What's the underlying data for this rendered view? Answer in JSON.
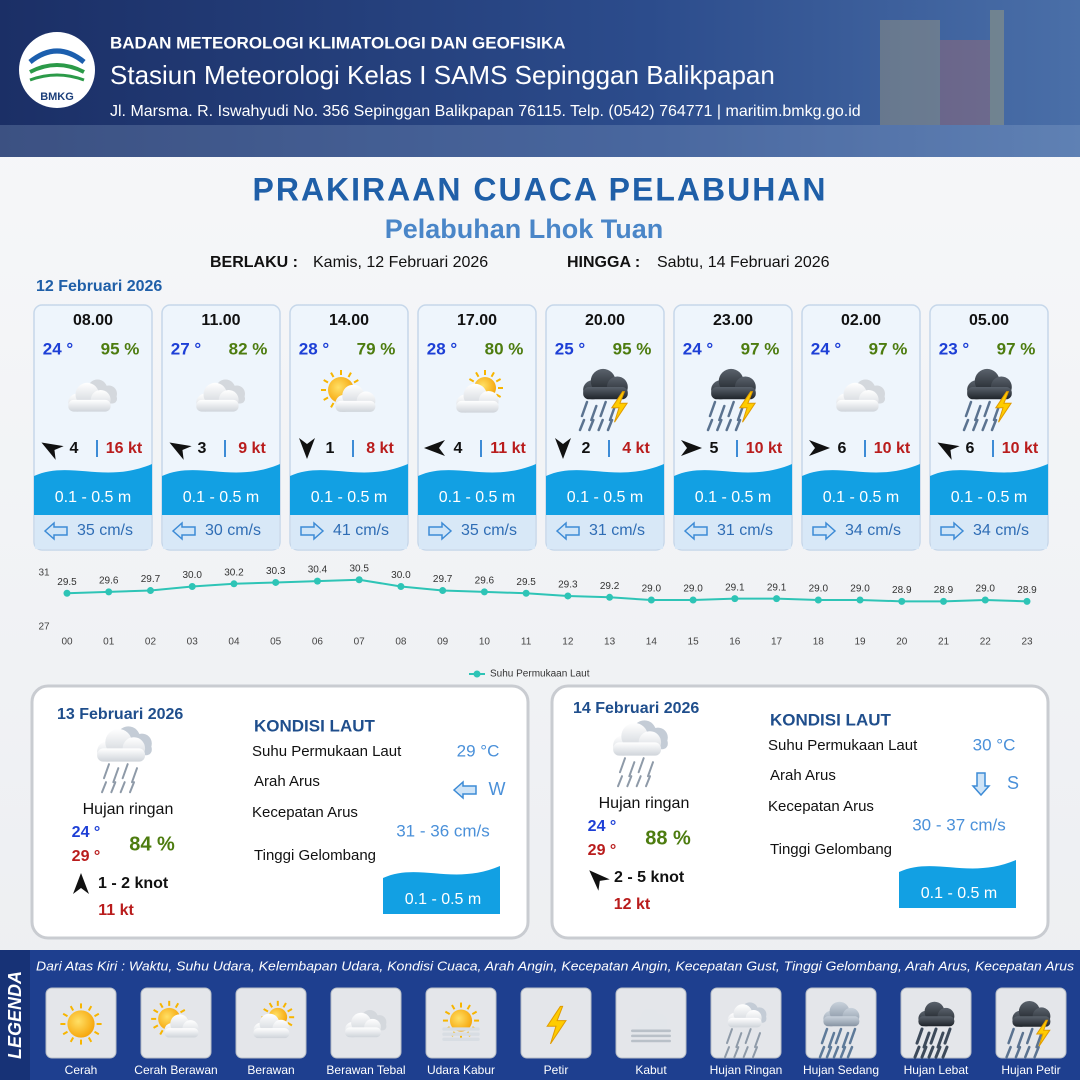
{
  "header": {
    "logo": "BMKG",
    "organization": "BADAN METEOROLOGI KLIMATOLOGI DAN GEOFISIKA",
    "station": "Stasiun Meteorologi Kelas I SAMS Sepinggan Balikpapan",
    "address": "Jl. Marsma. R. Iswahyudi No. 356 Sepinggan Balikpapan 76115. Telp. (0542) 764771 | maritim.bmkg.go.id"
  },
  "title": "PRAKIRAAN CUACA PELABUHAN",
  "subtitle": "Pelabuhan Lhok Tuan",
  "validity": {
    "from_label": "BERLAKU :",
    "from": "Kamis, 12 Februari 2026",
    "to_label": "HINGGA :",
    "to": "Sabtu, 14 Februari 2026"
  },
  "day1_date": "12 Februari 2026",
  "cards": [
    {
      "time": "08.00",
      "temperature": "24 °",
      "humidity": "95 %",
      "wind_speed": "4",
      "gust": "16 kt",
      "wave": "0.1 - 0.5 m",
      "current_speed": "35 cm/s"
    },
    {
      "time": "11.00",
      "temperature": "27 °",
      "humidity": "82 %",
      "wind_speed": "3",
      "gust": "9 kt",
      "wave": "0.1 - 0.5 m",
      "current_speed": "30 cm/s"
    },
    {
      "time": "14.00",
      "temperature": "28 °",
      "humidity": "79 %",
      "wind_speed": "1",
      "gust": "8 kt",
      "wave": "0.1 - 0.5 m",
      "current_speed": "41 cm/s"
    },
    {
      "time": "17.00",
      "temperature": "28 °",
      "humidity": "80 %",
      "wind_speed": "4",
      "gust": "11 kt",
      "wave": "0.1 - 0.5 m",
      "current_speed": "35 cm/s"
    },
    {
      "time": "20.00",
      "temperature": "25 °",
      "humidity": "95 %",
      "wind_speed": "2",
      "gust": "4 kt",
      "wave": "0.1 - 0.5 m",
      "current_speed": "31 cm/s"
    },
    {
      "time": "23.00",
      "temperature": "24 °",
      "humidity": "97 %",
      "wind_speed": "5",
      "gust": "10 kt",
      "wave": "0.1 - 0.5 m",
      "current_speed": "31 cm/s"
    },
    {
      "time": "02.00",
      "temperature": "24 °",
      "humidity": "97 %",
      "wind_speed": "6",
      "gust": "10 kt",
      "wave": "0.1 - 0.5 m",
      "current_speed": "34 cm/s"
    },
    {
      "time": "05.00",
      "temperature": "23 °",
      "humidity": "97 %",
      "wind_speed": "6",
      "gust": "10 kt",
      "wave": "0.1 - 0.5 m",
      "current_speed": "34 cm/s"
    }
  ],
  "chart_data": {
    "type": "line",
    "categories": [
      "00",
      "01",
      "02",
      "03",
      "04",
      "05",
      "06",
      "07",
      "08",
      "09",
      "10",
      "11",
      "12",
      "13",
      "14",
      "15",
      "16",
      "17",
      "18",
      "19",
      "20",
      "21",
      "22",
      "23"
    ],
    "series": [
      {
        "name": "Suhu Permukaan Laut",
        "color": "#2ec4b6",
        "values": [
          29.5,
          29.6,
          29.7,
          30.0,
          30.2,
          30.3,
          30.4,
          30.5,
          30.0,
          29.7,
          29.6,
          29.5,
          29.3,
          29.2,
          29.0,
          29.0,
          29.1,
          29.1,
          29.0,
          29.0,
          28.9,
          28.9,
          29.0,
          28.9
        ],
        "value_labels": [
          "29.5",
          "29.6",
          "29.7",
          "30.0",
          "30.2",
          "30.3",
          "30.4",
          "30.5",
          "30.0",
          "29.7",
          "29.6",
          "29.5",
          "29.3",
          "29.2",
          "29.0",
          "29.0",
          "29.1",
          "29.1",
          "29.0",
          "29.0",
          "28.9",
          "28.9",
          "29.0",
          "28.9"
        ]
      }
    ],
    "ylim": [
      27,
      31
    ],
    "yticks": [
      27,
      31
    ],
    "grid": false
  },
  "days": [
    {
      "date": "13 Februari 2026",
      "condition": "Hujan ringan",
      "temp_min": "24 °",
      "temp_max": "29 °",
      "humidity": "84 %",
      "wind": "1 - 2 knot",
      "gust": "11 kt",
      "sea_title": "KONDISI LAUT",
      "sst_label": "Suhu Permukaan Laut",
      "sst": "29 °C",
      "current_dir_label": "Arah Arus",
      "current_dir": "W",
      "current_speed_label": "Kecepatan Arus",
      "current_speed": "31  - 36 cm/s",
      "wave_label": "Tinggi Gelombang",
      "wave": "0.1 - 0.5 m"
    },
    {
      "date": "14 Februari 2026",
      "condition": "Hujan ringan",
      "temp_min": "24 °",
      "temp_max": "29 °",
      "humidity": "88 %",
      "wind": "2 - 5 knot",
      "gust": "12 kt",
      "sea_title": "KONDISI LAUT",
      "sst_label": "Suhu Permukaan Laut",
      "sst": "30 °C",
      "current_dir_label": "Arah Arus",
      "current_dir": "S",
      "current_speed_label": "Kecepatan Arus",
      "current_speed": "30  - 37 cm/s",
      "wave_label": "Tinggi Gelombang",
      "wave": "0.1 - 0.5 m"
    }
  ],
  "legend": {
    "title": "LEGENDA",
    "description": "Dari Atas Kiri : Waktu, Suhu Udara, Kelembapan Udara, Kondisi Cuaca, Arah Angin, Kecepatan Angin, Kecepatan Gust, Tinggi Gelombang, Arah Arus, Kecepatan Arus",
    "items": [
      "Cerah",
      "Cerah Berawan",
      "Berawan",
      "Berawan Tebal",
      "Udara Kabur",
      "Petir",
      "Kabut",
      "Hujan Ringan",
      "Hujan Sedang",
      "Hujan Lebat",
      "Hujan Petir"
    ]
  }
}
